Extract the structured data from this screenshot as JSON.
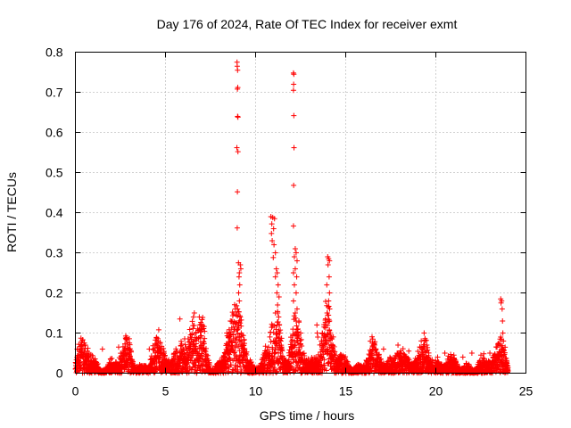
{
  "chart_data": {
    "type": "scatter",
    "title": "Day 176 of 2024, Rate Of TEC Index for receiver exmt",
    "xlabel": "GPS time / hours",
    "ylabel": "ROTI / TECUs",
    "xlim": [
      0,
      25
    ],
    "ylim": [
      0,
      0.8
    ],
    "x_ticks": [
      0,
      5,
      10,
      15,
      20,
      25
    ],
    "y_ticks": [
      0,
      0.1,
      0.2,
      0.3,
      0.4,
      0.5,
      0.6,
      0.7,
      0.8
    ],
    "x_tick_labels": [
      "0",
      "5",
      "10",
      "15",
      "20",
      "25"
    ],
    "y_tick_labels": [
      "0",
      "0.1",
      "0.2",
      "0.3",
      "0.4",
      "0.5",
      "0.6",
      "0.7",
      "0.8"
    ],
    "grid": true,
    "marker": "plus",
    "color": "#ff0000",
    "series": [
      {
        "points": [
          [
            8.97,
            0.775
          ],
          [
            8.98,
            0.765
          ],
          [
            9.0,
            0.755
          ],
          [
            9.01,
            0.712
          ],
          [
            8.99,
            0.708
          ],
          [
            9.0,
            0.64
          ],
          [
            9.02,
            0.638
          ],
          [
            8.96,
            0.562
          ],
          [
            9.02,
            0.552
          ],
          [
            8.99,
            0.452
          ],
          [
            8.98,
            0.362
          ],
          [
            9.05,
            0.275
          ],
          [
            9.15,
            0.27
          ],
          [
            9.18,
            0.26
          ],
          [
            9.1,
            0.25
          ],
          [
            9.08,
            0.24
          ],
          [
            9.12,
            0.22
          ],
          [
            9.06,
            0.2
          ],
          [
            9.1,
            0.18
          ],
          [
            9.0,
            0.16
          ],
          [
            9.15,
            0.14
          ],
          [
            9.05,
            0.12
          ],
          [
            9.2,
            0.1
          ],
          [
            9.1,
            0.09
          ],
          [
            12.1,
            0.748
          ],
          [
            12.12,
            0.745
          ],
          [
            12.11,
            0.72
          ],
          [
            12.1,
            0.705
          ],
          [
            12.12,
            0.642
          ],
          [
            12.13,
            0.562
          ],
          [
            12.11,
            0.468
          ],
          [
            12.1,
            0.367
          ],
          [
            12.2,
            0.31
          ],
          [
            12.25,
            0.3
          ],
          [
            12.15,
            0.29
          ],
          [
            12.3,
            0.28
          ],
          [
            12.2,
            0.26
          ],
          [
            12.1,
            0.25
          ],
          [
            12.28,
            0.24
          ],
          [
            12.15,
            0.22
          ],
          [
            12.25,
            0.2
          ],
          [
            12.1,
            0.18
          ],
          [
            12.3,
            0.16
          ],
          [
            12.2,
            0.15
          ],
          [
            12.4,
            0.13
          ],
          [
            12.35,
            0.11
          ],
          [
            12.5,
            0.1
          ],
          [
            12.3,
            0.08
          ],
          [
            10.85,
            0.39
          ],
          [
            10.95,
            0.388
          ],
          [
            11.05,
            0.385
          ],
          [
            10.9,
            0.372
          ],
          [
            11.0,
            0.36
          ],
          [
            10.88,
            0.348
          ],
          [
            10.92,
            0.33
          ],
          [
            11.02,
            0.32
          ],
          [
            11.1,
            0.3
          ],
          [
            10.98,
            0.288
          ],
          [
            11.15,
            0.26
          ],
          [
            11.2,
            0.25
          ],
          [
            11.1,
            0.24
          ],
          [
            11.25,
            0.22
          ],
          [
            11.18,
            0.2
          ],
          [
            11.3,
            0.19
          ],
          [
            11.22,
            0.17
          ],
          [
            11.1,
            0.15
          ],
          [
            11.28,
            0.14
          ],
          [
            11.2,
            0.12
          ],
          [
            11.35,
            0.1
          ],
          [
            11.3,
            0.09
          ],
          [
            11.4,
            0.08
          ],
          [
            14.0,
            0.29
          ],
          [
            14.05,
            0.285
          ],
          [
            14.1,
            0.28
          ],
          [
            14.02,
            0.27
          ],
          [
            14.08,
            0.24
          ],
          [
            13.95,
            0.22
          ],
          [
            14.1,
            0.2
          ],
          [
            14.05,
            0.18
          ],
          [
            13.98,
            0.15
          ],
          [
            14.1,
            0.13
          ],
          [
            13.9,
            0.12
          ],
          [
            13.8,
            0.115
          ],
          [
            14.15,
            0.1
          ],
          [
            13.7,
            0.1
          ],
          [
            14.2,
            0.09
          ],
          [
            13.4,
            0.12
          ],
          [
            13.42,
            0.1
          ],
          [
            13.45,
            0.09
          ],
          [
            23.6,
            0.185
          ],
          [
            23.65,
            0.18
          ],
          [
            23.62,
            0.175
          ],
          [
            23.68,
            0.16
          ],
          [
            23.7,
            0.13
          ],
          [
            23.72,
            0.1
          ],
          [
            23.6,
            0.09
          ],
          [
            23.75,
            0.08
          ],
          [
            5.8,
            0.135
          ],
          [
            6.6,
            0.15
          ],
          [
            6.55,
            0.14
          ],
          [
            6.9,
            0.12
          ],
          [
            7.0,
            0.11
          ],
          [
            6.7,
            0.1
          ],
          [
            6.95,
            0.09
          ],
          [
            8.6,
            0.13
          ],
          [
            8.4,
            0.1
          ],
          [
            8.5,
            0.09
          ],
          [
            4.6,
            0.08
          ],
          [
            4.7,
            0.075
          ],
          [
            0.5,
            0.075
          ],
          [
            0.55,
            0.07
          ],
          [
            0.1,
            0.06
          ],
          [
            1.5,
            0.06
          ],
          [
            2.4,
            0.065
          ],
          [
            2.9,
            0.07
          ],
          [
            3.0,
            0.075
          ],
          [
            4.1,
            0.06
          ],
          [
            16.5,
            0.085
          ],
          [
            16.6,
            0.07
          ],
          [
            17.1,
            0.06
          ],
          [
            17.9,
            0.07
          ],
          [
            18.5,
            0.055
          ],
          [
            19.35,
            0.1
          ],
          [
            19.4,
            0.08
          ],
          [
            19.5,
            0.07
          ],
          [
            20.1,
            0.04
          ],
          [
            20.5,
            0.05
          ],
          [
            21.0,
            0.045
          ],
          [
            21.5,
            0.04
          ],
          [
            22.0,
            0.05
          ],
          [
            22.5,
            0.045
          ],
          [
            23.0,
            0.05
          ]
        ]
      }
    ]
  }
}
